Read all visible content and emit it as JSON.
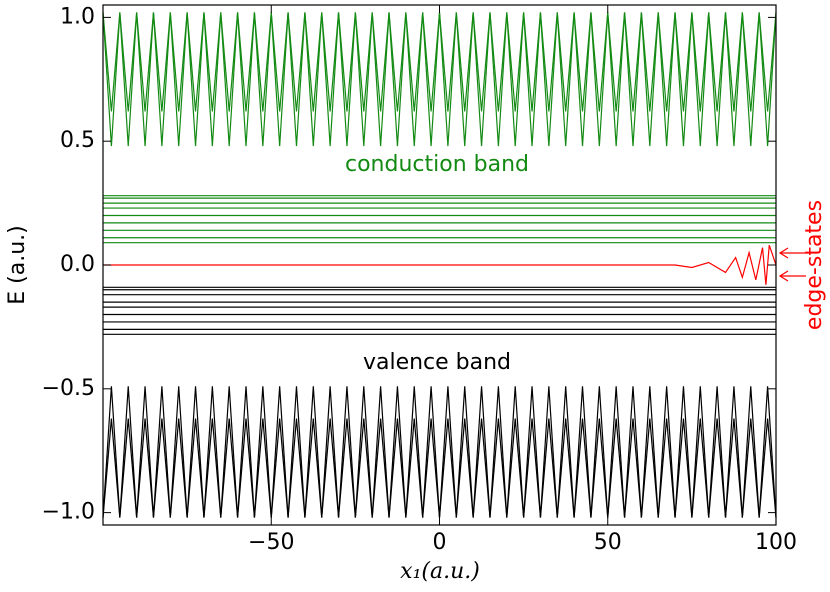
{
  "chart_data": {
    "type": "line",
    "ylabel": "E (a.u.)",
    "xlabel": "x₁(a.u.)",
    "xlim": [
      -100,
      100
    ],
    "ylim": [
      -1.05,
      1.05
    ],
    "xticks": [
      {
        "value": -50,
        "label": "−50"
      },
      0,
      50,
      100
    ],
    "yticks": [
      {
        "value": -1,
        "label": "−1.0"
      },
      {
        "value": -0.5,
        "label": "−0.5"
      },
      {
        "value": 0,
        "label": "0.0"
      },
      {
        "value": 0.5,
        "label": "0.5"
      },
      {
        "value": 1,
        "label": "1.0"
      }
    ],
    "annotations": [
      {
        "text": "conduction band",
        "color": "#138a13"
      },
      {
        "text": "valence band",
        "color": "#000000"
      },
      {
        "text": "edge-states",
        "color": "#ff0000"
      }
    ],
    "x": [
      -100,
      -97.5,
      -95,
      -92.5,
      -90,
      -87.5,
      -85,
      -82.5,
      -80,
      -77.5,
      -75,
      -72.5,
      -70,
      -67.5,
      -65,
      -62.5,
      -60,
      -57.5,
      -55,
      -52.5,
      -50,
      -47.5,
      -45,
      -42.5,
      -40,
      -37.5,
      -35,
      -32.5,
      -30,
      -27.5,
      -25,
      -22.5,
      -20,
      -17.5,
      -15,
      -12.5,
      -10,
      -7.5,
      -5,
      -2.5,
      0,
      2.5,
      5,
      7.5,
      10,
      12.5,
      15,
      17.5,
      20,
      22.5,
      25,
      27.5,
      30,
      32.5,
      35,
      37.5,
      40,
      42.5,
      45,
      47.5,
      50,
      52.5,
      55,
      57.5,
      60,
      62.5,
      65,
      67.5,
      70,
      72.5,
      75,
      77.5,
      80,
      82.5,
      85,
      87.5,
      90,
      92.5,
      95,
      97.5,
      100
    ],
    "series": [
      {
        "color": "#138a13",
        "values": [
          1.02,
          0.48,
          1.02,
          0.48,
          1.02,
          0.48,
          1.02,
          0.48,
          1.02,
          0.48,
          1.02,
          0.48,
          1.02,
          0.48,
          1.02,
          0.48,
          1.02,
          0.48,
          1.02,
          0.48,
          1.02,
          0.48,
          1.02,
          0.48,
          1.02,
          0.48,
          1.02,
          0.48,
          1.02,
          0.48,
          1.02,
          0.48,
          1.02,
          0.48,
          1.02,
          0.48,
          1.02,
          0.48,
          1.02,
          0.48,
          1.02,
          0.48,
          1.02,
          0.48,
          1.02,
          0.48,
          1.02,
          0.48,
          1.02,
          0.48,
          1.02,
          0.48,
          1.02,
          0.48,
          1.02,
          0.48,
          1.02,
          0.48,
          1.02,
          0.48,
          1.02,
          0.48,
          1.02,
          0.48,
          1.02,
          0.48,
          1.02,
          0.48,
          1.02,
          0.48,
          1.02,
          0.48,
          1.02,
          0.48,
          1.02,
          0.48,
          1.02,
          0.48,
          1.02,
          0.48,
          1.02
        ]
      },
      {
        "color": "#138a13",
        "values": [
          1.02,
          0.62,
          1.02,
          0.62,
          1.02,
          0.62,
          1.02,
          0.62,
          1.02,
          0.62,
          1.02,
          0.62,
          1.02,
          0.62,
          1.02,
          0.62,
          1.02,
          0.62,
          1.02,
          0.62,
          1.02,
          0.62,
          1.02,
          0.62,
          1.02,
          0.62,
          1.02,
          0.62,
          1.02,
          0.62,
          1.02,
          0.62,
          1.02,
          0.62,
          1.02,
          0.62,
          1.02,
          0.62,
          1.02,
          0.62,
          1.02,
          0.62,
          1.02,
          0.62,
          1.02,
          0.62,
          1.02,
          0.62,
          1.02,
          0.62,
          1.02,
          0.62,
          1.02,
          0.62,
          1.02,
          0.62,
          1.02,
          0.62,
          1.02,
          0.62,
          1.02,
          0.62,
          1.02,
          0.62,
          1.02,
          0.62,
          1.02,
          0.62,
          1.02,
          0.62,
          1.02,
          0.62,
          1.02,
          0.62,
          1.02,
          0.62,
          1.02,
          0.62,
          1.02,
          0.62,
          1.02
        ]
      },
      {
        "color": "#000000",
        "values": [
          -1.02,
          -0.49,
          -1.02,
          -0.49,
          -1.02,
          -0.49,
          -1.02,
          -0.49,
          -1.02,
          -0.49,
          -1.02,
          -0.49,
          -1.02,
          -0.49,
          -1.02,
          -0.49,
          -1.02,
          -0.49,
          -1.02,
          -0.49,
          -1.02,
          -0.49,
          -1.02,
          -0.49,
          -1.02,
          -0.49,
          -1.02,
          -0.49,
          -1.02,
          -0.49,
          -1.02,
          -0.49,
          -1.02,
          -0.49,
          -1.02,
          -0.49,
          -1.02,
          -0.49,
          -1.02,
          -0.49,
          -1.02,
          -0.49,
          -1.02,
          -0.49,
          -1.02,
          -0.49,
          -1.02,
          -0.49,
          -1.02,
          -0.49,
          -1.02,
          -0.49,
          -1.02,
          -0.49,
          -1.02,
          -0.49,
          -1.02,
          -0.49,
          -1.02,
          -0.49,
          -1.02,
          -0.49,
          -1.02,
          -0.49,
          -1.02,
          -0.49,
          -1.02,
          -0.49,
          -1.02,
          -0.49,
          -1.02,
          -0.49,
          -1.02,
          -0.49,
          -1.02,
          -0.49,
          -1.02,
          -0.49,
          -1.02,
          -0.49,
          -1.02
        ]
      },
      {
        "color": "#000000",
        "values": [
          -1.02,
          -0.62,
          -1.02,
          -0.62,
          -1.02,
          -0.62,
          -1.02,
          -0.62,
          -1.02,
          -0.62,
          -1.02,
          -0.62,
          -1.02,
          -0.62,
          -1.02,
          -0.62,
          -1.02,
          -0.62,
          -1.02,
          -0.62,
          -1.02,
          -0.62,
          -1.02,
          -0.62,
          -1.02,
          -0.62,
          -1.02,
          -0.62,
          -1.02,
          -0.62,
          -1.02,
          -0.62,
          -1.02,
          -0.62,
          -1.02,
          -0.62,
          -1.02,
          -0.62,
          -1.02,
          -0.62,
          -1.02,
          -0.62,
          -1.02,
          -0.62,
          -1.02,
          -0.62,
          -1.02,
          -0.62,
          -1.02,
          -0.62,
          -1.02,
          -0.62,
          -1.02,
          -0.62,
          -1.02,
          -0.62,
          -1.02,
          -0.62,
          -1.02,
          -0.62,
          -1.02,
          -0.62,
          -1.02,
          -0.62,
          -1.02,
          -0.62,
          -1.02,
          -0.62,
          -1.02,
          -0.62,
          -1.02,
          -0.62,
          -1.02,
          -0.62,
          -1.02,
          -0.62,
          -1.02,
          -0.62,
          -1.02,
          -0.62,
          -1.02
        ]
      },
      {
        "color": "#138a13",
        "x": [
          -100,
          100
        ],
        "values": [
          0.28,
          0.28
        ]
      },
      {
        "color": "#138a13",
        "x": [
          -100,
          100
        ],
        "values": [
          0.27,
          0.27
        ]
      },
      {
        "color": "#138a13",
        "x": [
          -100,
          100
        ],
        "values": [
          0.25,
          0.25
        ]
      },
      {
        "color": "#138a13",
        "x": [
          -100,
          100
        ],
        "values": [
          0.23,
          0.23
        ]
      },
      {
        "color": "#138a13",
        "x": [
          -100,
          100
        ],
        "values": [
          0.2,
          0.2
        ]
      },
      {
        "color": "#138a13",
        "x": [
          -100,
          100
        ],
        "values": [
          0.17,
          0.17
        ]
      },
      {
        "color": "#138a13",
        "x": [
          -100,
          100
        ],
        "values": [
          0.14,
          0.14
        ]
      },
      {
        "color": "#138a13",
        "x": [
          -100,
          100
        ],
        "values": [
          0.11,
          0.11
        ]
      },
      {
        "color": "#138a13",
        "x": [
          -100,
          100
        ],
        "values": [
          0.09,
          0.09
        ]
      },
      {
        "color": "#000000",
        "x": [
          -100,
          100
        ],
        "values": [
          -0.09,
          -0.09
        ]
      },
      {
        "color": "#000000",
        "x": [
          -100,
          100
        ],
        "values": [
          -0.1,
          -0.1
        ]
      },
      {
        "color": "#000000",
        "x": [
          -100,
          100
        ],
        "values": [
          -0.12,
          -0.12
        ]
      },
      {
        "color": "#000000",
        "x": [
          -100,
          100
        ],
        "values": [
          -0.15,
          -0.15
        ]
      },
      {
        "color": "#000000",
        "x": [
          -100,
          100
        ],
        "values": [
          -0.17,
          -0.17
        ]
      },
      {
        "color": "#000000",
        "x": [
          -100,
          100
        ],
        "values": [
          -0.2,
          -0.2
        ]
      },
      {
        "color": "#000000",
        "x": [
          -100,
          100
        ],
        "values": [
          -0.23,
          -0.23
        ]
      },
      {
        "color": "#000000",
        "x": [
          -100,
          100
        ],
        "values": [
          -0.26,
          -0.26
        ]
      },
      {
        "color": "#000000",
        "x": [
          -100,
          100
        ],
        "values": [
          -0.28,
          -0.28
        ]
      },
      {
        "color": "#ff0000",
        "x": [
          -100,
          70,
          75,
          80,
          85,
          88,
          90,
          92,
          94,
          96,
          97,
          98,
          100
        ],
        "values": [
          0,
          0,
          -0.01,
          0.01,
          -0.03,
          0.03,
          -0.05,
          0.05,
          -0.06,
          0.07,
          -0.08,
          0.08,
          0
        ]
      }
    ]
  }
}
